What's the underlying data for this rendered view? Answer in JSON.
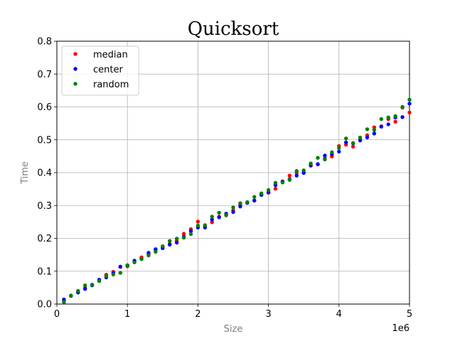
{
  "chart_data": {
    "type": "scatter",
    "title": "Quicksort",
    "xlabel": "Size",
    "ylabel": "Time",
    "x_offset_label": "1e6",
    "xlim": [
      0,
      5
    ],
    "ylim": [
      0,
      0.8
    ],
    "x_ticks": [
      0,
      1,
      2,
      3,
      4,
      5
    ],
    "x_tick_labels": [
      "0",
      "1",
      "2",
      "3",
      "4",
      "5"
    ],
    "y_ticks": [
      0.0,
      0.1,
      0.2,
      0.3,
      0.4,
      0.5,
      0.6,
      0.7,
      0.8
    ],
    "y_tick_labels": [
      "0.0",
      "0.1",
      "0.2",
      "0.3",
      "0.4",
      "0.5",
      "0.6",
      "0.7",
      "0.8"
    ],
    "grid": true,
    "legend_position": "top-left",
    "x": [
      0.1,
      0.2,
      0.3,
      0.4,
      0.5,
      0.6,
      0.7,
      0.8,
      0.9,
      1.0,
      1.1,
      1.2,
      1.3,
      1.4,
      1.5,
      1.6,
      1.7,
      1.8,
      1.9,
      2.0,
      2.1,
      2.2,
      2.3,
      2.4,
      2.5,
      2.6,
      2.7,
      2.8,
      2.9,
      3.0,
      3.1,
      3.2,
      3.3,
      3.4,
      3.5,
      3.6,
      3.7,
      3.8,
      3.9,
      4.0,
      4.1,
      4.2,
      4.3,
      4.4,
      4.5,
      4.6,
      4.7,
      4.8,
      4.9,
      5.0
    ],
    "series": [
      {
        "name": "median",
        "color": "#ff0000",
        "values": [
          0.011,
          0.025,
          0.036,
          0.049,
          0.058,
          0.073,
          0.089,
          0.098,
          0.113,
          0.115,
          0.128,
          0.142,
          0.152,
          0.165,
          0.173,
          0.183,
          0.192,
          0.214,
          0.228,
          0.251,
          0.236,
          0.249,
          0.266,
          0.27,
          0.285,
          0.302,
          0.31,
          0.315,
          0.333,
          0.339,
          0.351,
          0.373,
          0.391,
          0.399,
          0.401,
          0.421,
          0.425,
          0.443,
          0.449,
          0.481,
          0.485,
          0.479,
          0.5,
          0.514,
          0.538,
          0.541,
          0.563,
          0.555,
          0.598,
          0.583
        ]
      },
      {
        "name": "center",
        "color": "#0000ff",
        "values": [
          0.014,
          0.025,
          0.035,
          0.046,
          0.057,
          0.074,
          0.081,
          0.094,
          0.114,
          0.118,
          0.132,
          0.137,
          0.156,
          0.167,
          0.17,
          0.181,
          0.187,
          0.205,
          0.222,
          0.233,
          0.233,
          0.257,
          0.264,
          0.275,
          0.28,
          0.297,
          0.308,
          0.315,
          0.332,
          0.34,
          0.362,
          0.373,
          0.38,
          0.391,
          0.399,
          0.423,
          0.426,
          0.452,
          0.456,
          0.464,
          0.492,
          0.489,
          0.498,
          0.507,
          0.519,
          0.54,
          0.547,
          0.568,
          0.569,
          0.61
        ]
      },
      {
        "name": "random",
        "color": "#008000",
        "values": [
          0.006,
          0.026,
          0.04,
          0.057,
          0.059,
          0.07,
          0.085,
          0.09,
          0.095,
          0.118,
          0.127,
          0.137,
          0.148,
          0.159,
          0.176,
          0.192,
          0.199,
          0.202,
          0.213,
          0.239,
          0.24,
          0.266,
          0.278,
          0.271,
          0.294,
          0.307,
          0.31,
          0.326,
          0.337,
          0.347,
          0.369,
          0.37,
          0.378,
          0.405,
          0.407,
          0.428,
          0.445,
          0.44,
          0.462,
          0.475,
          0.504,
          0.49,
          0.507,
          0.532,
          0.53,
          0.563,
          0.568,
          0.572,
          0.6,
          0.622
        ]
      }
    ]
  }
}
